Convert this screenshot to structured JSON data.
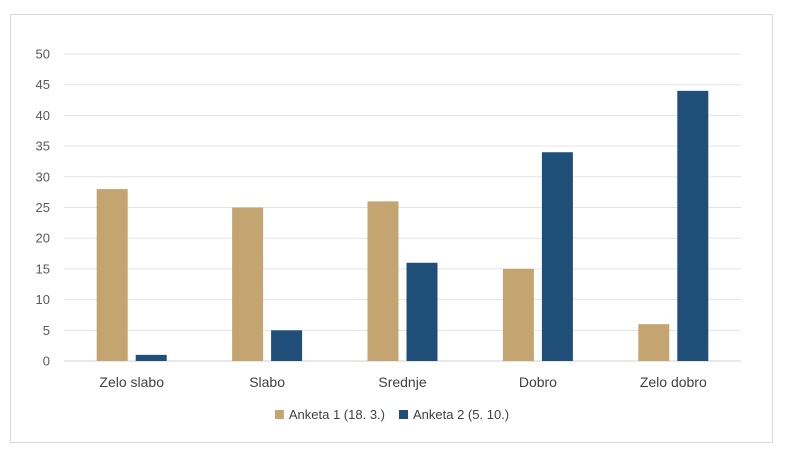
{
  "chart_data": {
    "type": "bar",
    "categories": [
      "Zelo slabo",
      "Slabo",
      "Srednje",
      "Dobro",
      "Zelo dobro"
    ],
    "series": [
      {
        "name": "Anketa 1 (18. 3.)",
        "values": [
          28,
          25,
          26,
          15,
          6
        ],
        "color": "#c4a572"
      },
      {
        "name": "Anketa 2 (5. 10.)",
        "values": [
          1,
          5,
          16,
          34,
          44
        ],
        "color": "#1f4e79"
      }
    ],
    "yticks": [
      "0",
      "5",
      "10",
      "15",
      "20",
      "25",
      "30",
      "35",
      "40",
      "45",
      "50"
    ],
    "ylim": [
      0,
      50
    ],
    "grid": true,
    "legend": "bottom",
    "title": "",
    "xlabel": "",
    "ylabel": ""
  }
}
